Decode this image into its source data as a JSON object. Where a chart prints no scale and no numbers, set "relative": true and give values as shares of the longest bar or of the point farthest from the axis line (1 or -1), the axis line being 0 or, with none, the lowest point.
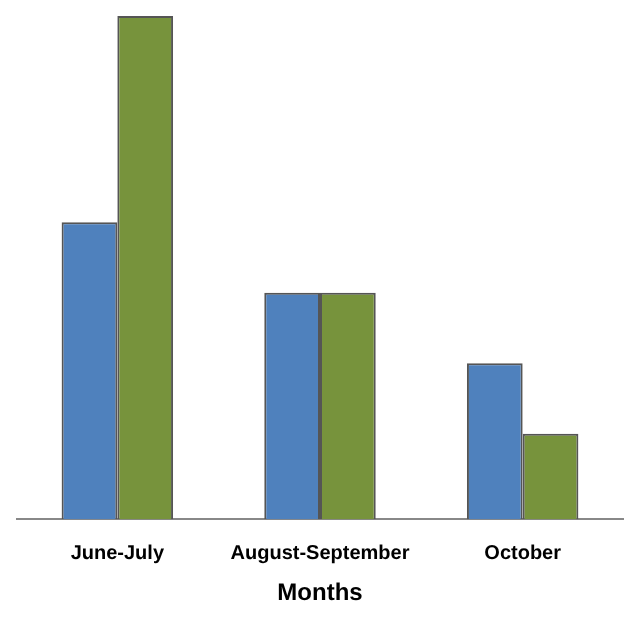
{
  "chart_data": {
    "type": "bar",
    "relative": true,
    "categories": [
      "June-July",
      "August-September",
      "October"
    ],
    "xlabel": "Months",
    "series": [
      {
        "color": "#4f81bd",
        "values": [
          0.59,
          0.45,
          0.31
        ]
      },
      {
        "color": "#77933c",
        "values": [
          1,
          0.45,
          0.17
        ]
      }
    ],
    "legend": false
  }
}
